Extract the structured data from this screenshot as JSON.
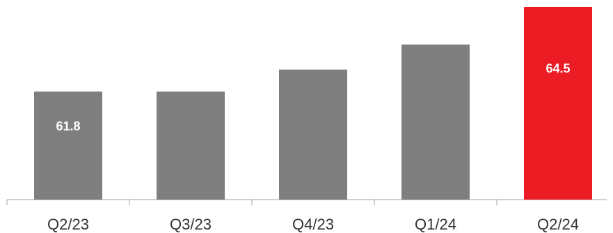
{
  "chart_data": {
    "type": "bar",
    "categories": [
      "Q2/23",
      "Q3/23",
      "Q4/23",
      "Q1/24",
      "Q2/24"
    ],
    "values": [
      61.8,
      61.8,
      62.5,
      63.3,
      64.5
    ],
    "data_labels": [
      "61.8",
      "",
      "",
      "",
      "64.5"
    ],
    "title": "",
    "xlabel": "",
    "ylabel": "",
    "ylim": [
      58.35,
      64.5
    ],
    "grid": false,
    "colors": {
      "default_bar": "#7f7f7f",
      "highlight_bar": "#ec1c24",
      "axis": "#bfbfbf"
    },
    "highlight_index": 4
  }
}
